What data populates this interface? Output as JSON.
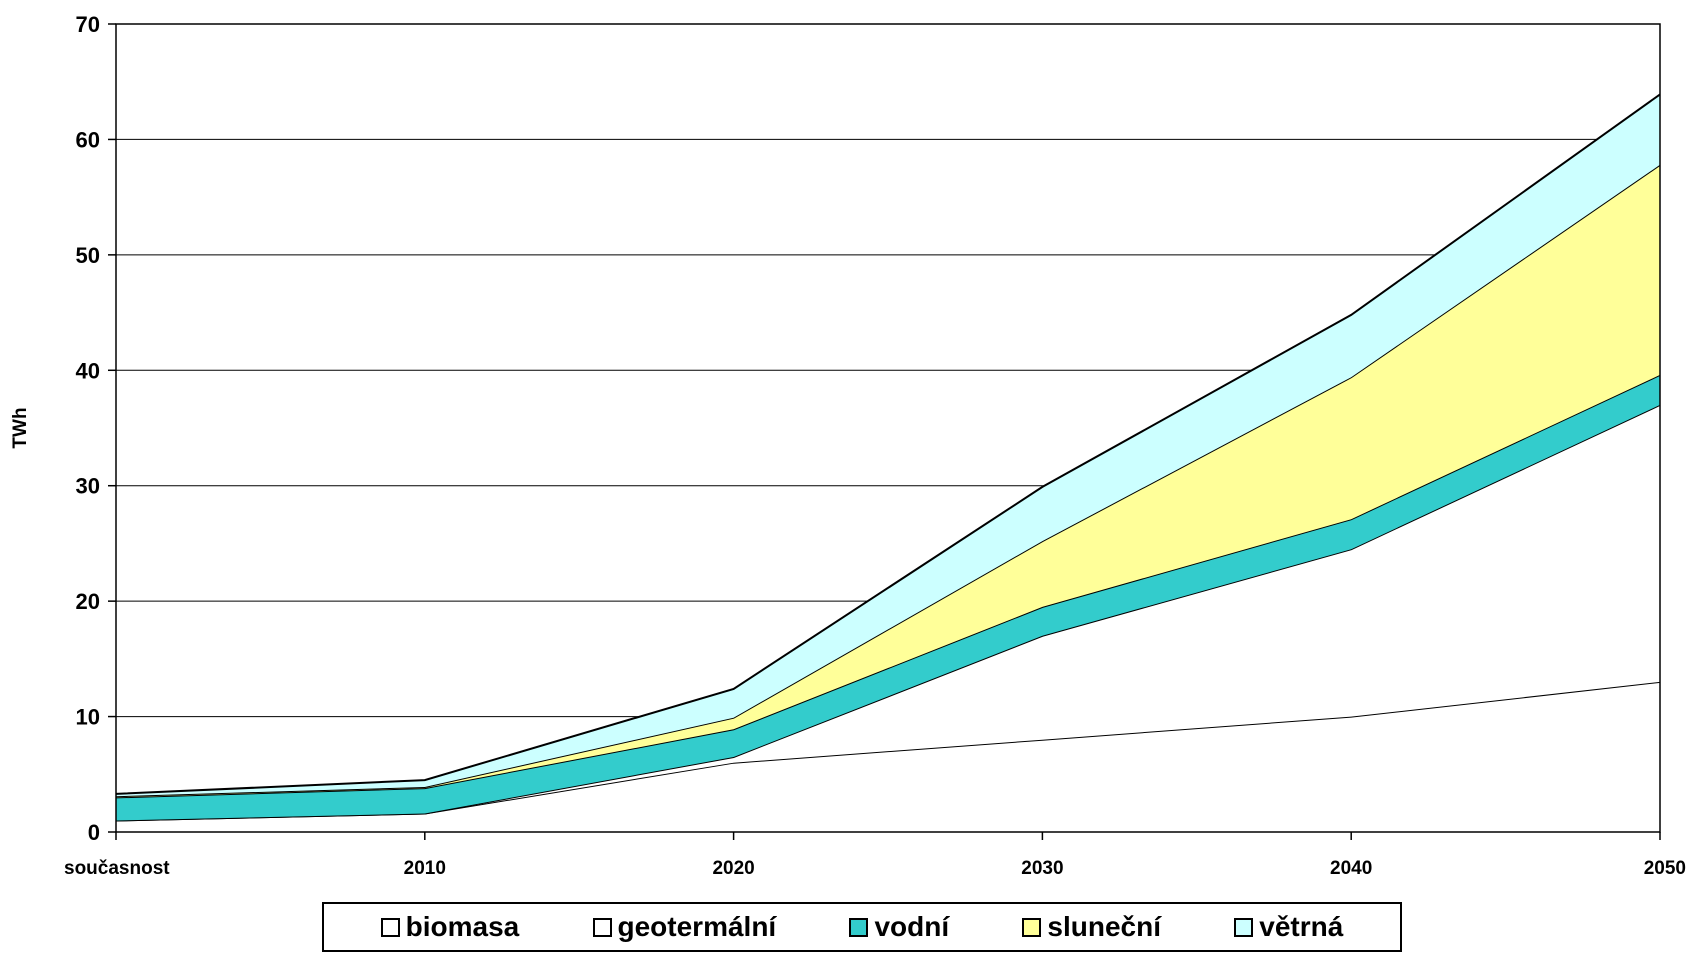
{
  "chart_data": {
    "type": "area",
    "stacked": true,
    "title": "",
    "xlabel": "",
    "ylabel": "TWh",
    "ylim": [
      0,
      70
    ],
    "yticks": [
      0,
      10,
      20,
      30,
      40,
      50,
      60,
      70
    ],
    "categories": [
      "současnost",
      "2010",
      "2020",
      "2030",
      "2040",
      "2050"
    ],
    "grid": true,
    "legend_position": "bottom",
    "series": [
      {
        "name": "biomasa",
        "color": "#ffffff",
        "values": [
          1.0,
          1.6,
          6.0,
          8.0,
          10.0,
          13.0
        ]
      },
      {
        "name": "geotermální",
        "color": "#ffffff",
        "values": [
          0.0,
          0.0,
          0.5,
          9.0,
          14.5,
          24.0
        ]
      },
      {
        "name": "vodní",
        "color": "#33cccc",
        "values": [
          2.0,
          2.2,
          2.4,
          2.5,
          2.6,
          2.6
        ]
      },
      {
        "name": "sluneční",
        "color": "#ffff99",
        "values": [
          0.1,
          0.1,
          1.0,
          5.7,
          12.3,
          18.2
        ]
      },
      {
        "name": "větrná",
        "color": "#ccffff",
        "values": [
          0.2,
          0.6,
          2.5,
          4.7,
          5.4,
          6.1
        ]
      }
    ]
  }
}
